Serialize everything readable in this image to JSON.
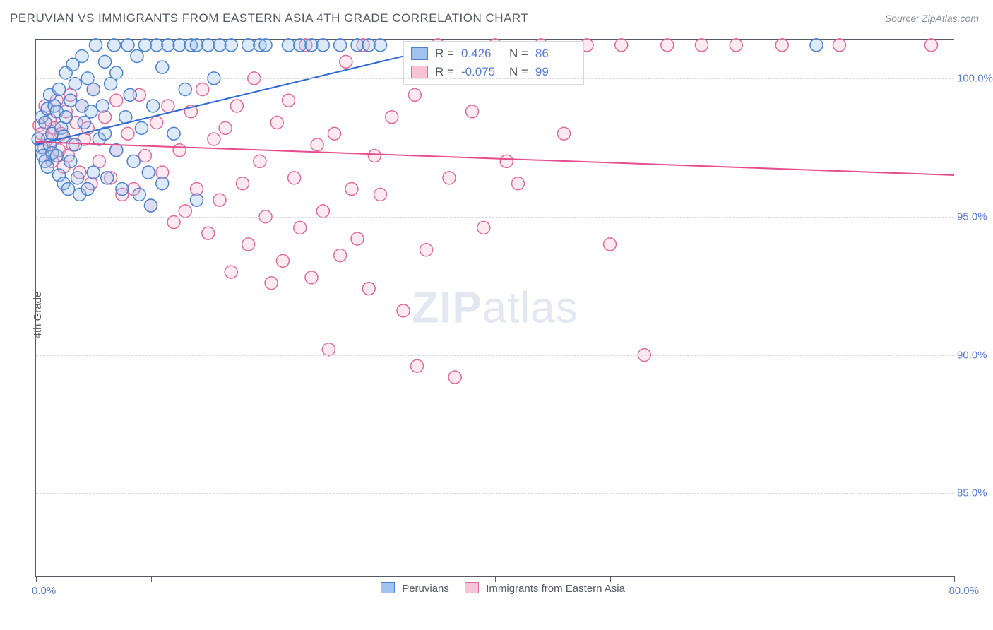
{
  "title": "PERUVIAN VS IMMIGRANTS FROM EASTERN ASIA 4TH GRADE CORRELATION CHART",
  "source": "Source: ZipAtlas.com",
  "ylabel": "4th Grade",
  "watermark_bold": "ZIP",
  "watermark_rest": "atlas",
  "chart": {
    "type": "scatter-with-regression",
    "background": "#ffffff",
    "grid_color": "#d7d9de",
    "axis_color": "#555a63",
    "label_color": "#5b7bd5",
    "x_min": 0.0,
    "x_max": 80.0,
    "x_origin_label": "0.0%",
    "x_max_label": "80.0%",
    "x_tick_step": 10.0,
    "y_min": 82.0,
    "y_max": 101.4,
    "y_ticks": [
      85.0,
      90.0,
      95.0,
      100.0
    ],
    "y_tick_labels": [
      "85.0%",
      "90.0%",
      "95.0%",
      "100.0%"
    ],
    "marker_radius": 9,
    "series": [
      {
        "key": "peruvians",
        "label": "Peruvians",
        "fill": "#9fc2ef",
        "stroke": "#4d81d0",
        "regression": {
          "x1": 0.0,
          "y1": 97.6,
          "x2": 36.0,
          "y2": 101.2,
          "color": "#2f6ad0",
          "width": 2
        },
        "R_label": "R =",
        "R_value": "0.426",
        "N_label": "N =",
        "N_value": "86",
        "points": [
          [
            0.2,
            97.8
          ],
          [
            0.5,
            97.5
          ],
          [
            0.5,
            98.6
          ],
          [
            0.6,
            97.2
          ],
          [
            0.8,
            98.4
          ],
          [
            0.8,
            97.0
          ],
          [
            1.0,
            96.8
          ],
          [
            1.0,
            98.9
          ],
          [
            1.2,
            97.6
          ],
          [
            1.2,
            99.4
          ],
          [
            1.4,
            97.3
          ],
          [
            1.4,
            98.0
          ],
          [
            1.6,
            99.0
          ],
          [
            1.8,
            97.2
          ],
          [
            1.8,
            98.8
          ],
          [
            2.0,
            96.5
          ],
          [
            2.0,
            99.6
          ],
          [
            2.2,
            98.2
          ],
          [
            2.4,
            96.2
          ],
          [
            2.4,
            97.9
          ],
          [
            2.6,
            100.2
          ],
          [
            2.6,
            98.6
          ],
          [
            2.8,
            96.0
          ],
          [
            3.0,
            99.2
          ],
          [
            3.0,
            97.0
          ],
          [
            3.2,
            100.5
          ],
          [
            3.4,
            99.8
          ],
          [
            3.4,
            97.6
          ],
          [
            3.6,
            96.4
          ],
          [
            3.8,
            95.8
          ],
          [
            4.0,
            99.0
          ],
          [
            4.0,
            100.8
          ],
          [
            4.2,
            98.4
          ],
          [
            4.5,
            100.0
          ],
          [
            4.5,
            96.0
          ],
          [
            4.8,
            98.8
          ],
          [
            5.0,
            99.6
          ],
          [
            5.0,
            96.6
          ],
          [
            5.2,
            101.2
          ],
          [
            5.5,
            97.8
          ],
          [
            5.8,
            99.0
          ],
          [
            6.0,
            100.6
          ],
          [
            6.0,
            98.0
          ],
          [
            6.2,
            96.4
          ],
          [
            6.5,
            99.8
          ],
          [
            6.8,
            101.2
          ],
          [
            7.0,
            97.4
          ],
          [
            7.0,
            100.2
          ],
          [
            7.5,
            96.0
          ],
          [
            7.8,
            98.6
          ],
          [
            8.0,
            101.2
          ],
          [
            8.2,
            99.4
          ],
          [
            8.5,
            97.0
          ],
          [
            8.8,
            100.8
          ],
          [
            9.0,
            95.8
          ],
          [
            9.2,
            98.2
          ],
          [
            9.5,
            101.2
          ],
          [
            9.8,
            96.6
          ],
          [
            10.0,
            95.4
          ],
          [
            10.2,
            99.0
          ],
          [
            10.5,
            101.2
          ],
          [
            11.0,
            100.4
          ],
          [
            11.0,
            96.2
          ],
          [
            11.5,
            101.2
          ],
          [
            12.0,
            98.0
          ],
          [
            12.5,
            101.2
          ],
          [
            13.0,
            99.6
          ],
          [
            13.5,
            101.2
          ],
          [
            14.0,
            95.6
          ],
          [
            14.0,
            101.2
          ],
          [
            15.0,
            101.2
          ],
          [
            15.5,
            100.0
          ],
          [
            16.0,
            101.2
          ],
          [
            17.0,
            101.2
          ],
          [
            18.5,
            101.2
          ],
          [
            19.5,
            101.2
          ],
          [
            20.0,
            101.2
          ],
          [
            22.0,
            101.2
          ],
          [
            23.0,
            101.2
          ],
          [
            24.0,
            101.2
          ],
          [
            25.0,
            101.2
          ],
          [
            26.5,
            101.2
          ],
          [
            28.0,
            101.2
          ],
          [
            29.0,
            101.2
          ],
          [
            30.0,
            101.2
          ],
          [
            68.0,
            101.2
          ]
        ]
      },
      {
        "key": "immigrants",
        "label": "Immigrants from Eastern Asia",
        "fill": "#f7c4d5",
        "stroke": "#e06a9a",
        "regression": {
          "x1": 0.0,
          "y1": 97.7,
          "x2": 80.0,
          "y2": 96.5,
          "color": "#e74b8b",
          "width": 2
        },
        "R_label": "R =",
        "R_value": "-0.075",
        "N_label": "N =",
        "N_value": "99",
        "points": [
          [
            0.3,
            98.3
          ],
          [
            0.5,
            98.0
          ],
          [
            0.7,
            97.5
          ],
          [
            0.8,
            99.0
          ],
          [
            1.0,
            97.8
          ],
          [
            1.2,
            98.5
          ],
          [
            1.4,
            97.0
          ],
          [
            1.6,
            98.2
          ],
          [
            1.8,
            99.2
          ],
          [
            2.0,
            97.4
          ],
          [
            2.2,
            98.0
          ],
          [
            2.4,
            96.8
          ],
          [
            2.6,
            98.8
          ],
          [
            2.8,
            97.2
          ],
          [
            3.0,
            99.4
          ],
          [
            3.2,
            97.6
          ],
          [
            3.5,
            98.4
          ],
          [
            3.8,
            96.6
          ],
          [
            4.0,
            99.0
          ],
          [
            4.2,
            97.8
          ],
          [
            4.5,
            98.2
          ],
          [
            4.8,
            96.2
          ],
          [
            5.0,
            99.6
          ],
          [
            5.5,
            97.0
          ],
          [
            6.0,
            98.6
          ],
          [
            6.5,
            96.4
          ],
          [
            7.0,
            99.2
          ],
          [
            7.0,
            97.4
          ],
          [
            7.5,
            95.8
          ],
          [
            8.0,
            98.0
          ],
          [
            8.5,
            96.0
          ],
          [
            9.0,
            99.4
          ],
          [
            9.5,
            97.2
          ],
          [
            10.0,
            95.4
          ],
          [
            10.5,
            98.4
          ],
          [
            11.0,
            96.6
          ],
          [
            11.5,
            99.0
          ],
          [
            12.0,
            94.8
          ],
          [
            12.5,
            97.4
          ],
          [
            13.0,
            95.2
          ],
          [
            13.5,
            98.8
          ],
          [
            14.0,
            96.0
          ],
          [
            14.5,
            99.6
          ],
          [
            15.0,
            94.4
          ],
          [
            15.5,
            97.8
          ],
          [
            16.0,
            95.6
          ],
          [
            16.5,
            98.2
          ],
          [
            17.0,
            93.0
          ],
          [
            17.5,
            99.0
          ],
          [
            18.0,
            96.2
          ],
          [
            18.5,
            94.0
          ],
          [
            19.0,
            100.0
          ],
          [
            19.5,
            97.0
          ],
          [
            20.0,
            95.0
          ],
          [
            20.5,
            92.6
          ],
          [
            21.0,
            98.4
          ],
          [
            21.5,
            93.4
          ],
          [
            22.0,
            99.2
          ],
          [
            22.5,
            96.4
          ],
          [
            23.0,
            94.6
          ],
          [
            23.5,
            101.2
          ],
          [
            24.0,
            92.8
          ],
          [
            24.5,
            97.6
          ],
          [
            25.0,
            95.2
          ],
          [
            25.5,
            90.2
          ],
          [
            26.0,
            98.0
          ],
          [
            26.5,
            93.6
          ],
          [
            27.0,
            100.6
          ],
          [
            27.5,
            96.0
          ],
          [
            28.0,
            94.2
          ],
          [
            28.5,
            101.2
          ],
          [
            29.0,
            92.4
          ],
          [
            29.5,
            97.2
          ],
          [
            30.0,
            95.8
          ],
          [
            31.0,
            98.6
          ],
          [
            32.0,
            91.6
          ],
          [
            33.0,
            99.4
          ],
          [
            34.0,
            93.8
          ],
          [
            33.2,
            89.6
          ],
          [
            35.0,
            101.2
          ],
          [
            36.0,
            96.4
          ],
          [
            36.5,
            89.2
          ],
          [
            38.0,
            98.8
          ],
          [
            39.0,
            94.6
          ],
          [
            40.0,
            101.2
          ],
          [
            41.0,
            97.0
          ],
          [
            42.0,
            96.2
          ],
          [
            44.0,
            101.2
          ],
          [
            46.0,
            98.0
          ],
          [
            48.0,
            101.2
          ],
          [
            50.0,
            94.0
          ],
          [
            51.0,
            101.2
          ],
          [
            53.0,
            90.0
          ],
          [
            55.0,
            101.2
          ],
          [
            58.0,
            101.2
          ],
          [
            61.0,
            101.2
          ],
          [
            65.0,
            101.2
          ],
          [
            70.0,
            101.2
          ],
          [
            78.0,
            101.2
          ]
        ]
      }
    ]
  },
  "bottom_legend": {
    "items": [
      {
        "label": "Peruvians",
        "fill": "#9fc2ef",
        "stroke": "#4d81d0"
      },
      {
        "label": "Immigrants from Eastern Asia",
        "fill": "#f7c4d5",
        "stroke": "#e06a9a"
      }
    ]
  }
}
